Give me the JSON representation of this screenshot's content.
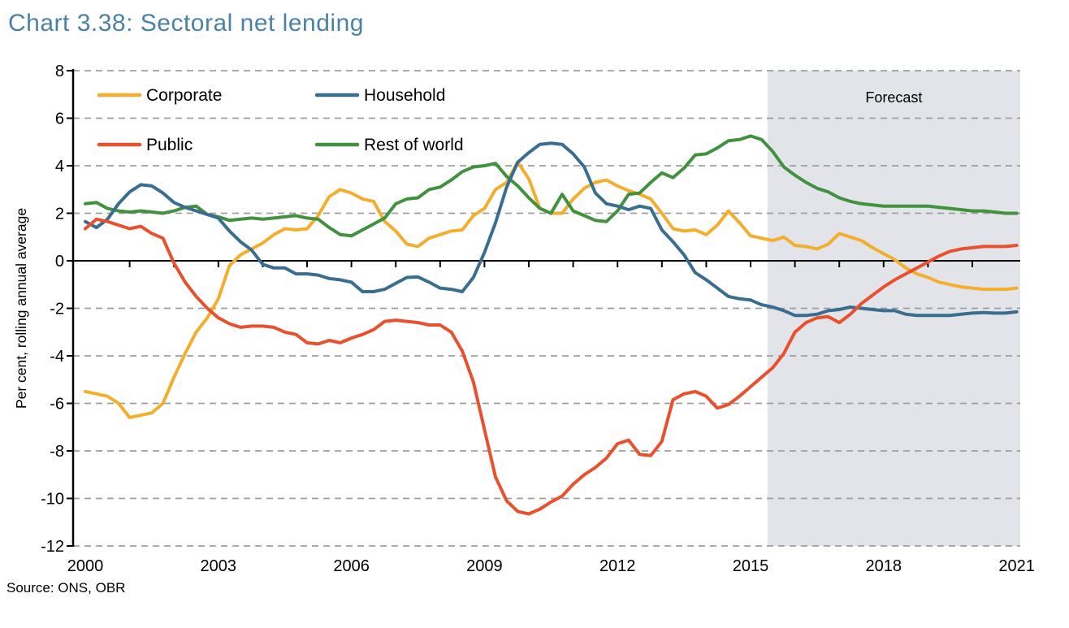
{
  "title": "Chart 3.38: Sectoral net lending",
  "source_note": "Source: ONS, OBR",
  "colors": {
    "title": "#4B81A5",
    "background": "#FFFFFF",
    "forecast_band": "#E2E4E9",
    "gridline": "#9E9E9E",
    "axis": "#000000",
    "text": "#000000"
  },
  "chart_data": {
    "type": "line",
    "title": "Chart 3.38: Sectoral net lending",
    "xlabel": "",
    "ylabel": "Per cent, rolling annual average",
    "forecast_label": "Forecast",
    "forecast_start": 2015.38,
    "ylim": [
      -12,
      8
    ],
    "xlim": [
      2000,
      2021.2
    ],
    "y_ticks": [
      8,
      6,
      4,
      2,
      0,
      -2,
      -4,
      -6,
      -8,
      -10,
      -12
    ],
    "x_tick_years": [
      2000,
      2003,
      2006,
      2009,
      2012,
      2015,
      2018,
      2021
    ],
    "x_tick_labels": [
      "2000",
      "2003",
      "2006",
      "2009",
      "2012",
      "2015",
      "2018",
      "2021"
    ],
    "x_start": 2000,
    "x_step": 0.25,
    "grid": "dashed-horizontal",
    "legend_position": "top-left-two-columns",
    "legend_order": [
      "Corporate",
      "Household",
      "Public",
      "Rest of world"
    ],
    "series": [
      {
        "name": "Corporate",
        "color": "#F2AE2C",
        "values": [
          -5.5,
          -5.6,
          -5.7,
          -6.0,
          -6.6,
          -6.5,
          -6.4,
          -6.0,
          -4.9,
          -3.9,
          -3.0,
          -2.4,
          -1.6,
          -0.2,
          0.25,
          0.5,
          0.75,
          1.1,
          1.35,
          1.3,
          1.35,
          1.9,
          2.7,
          3.0,
          2.85,
          2.6,
          2.5,
          1.65,
          1.25,
          0.7,
          0.6,
          0.95,
          1.1,
          1.25,
          1.3,
          1.9,
          2.2,
          3.0,
          3.3,
          4.15,
          3.45,
          2.2,
          2.0,
          2.0,
          2.6,
          3.05,
          3.3,
          3.4,
          3.15,
          2.95,
          2.8,
          2.6,
          2.0,
          1.35,
          1.25,
          1.3,
          1.1,
          1.5,
          2.1,
          1.6,
          1.05,
          0.95,
          0.85,
          1.0,
          0.65,
          0.6,
          0.5,
          0.7,
          1.15,
          1.0,
          0.85,
          0.55,
          0.3,
          0.05,
          -0.3,
          -0.55,
          -0.7,
          -0.9,
          -1.0,
          -1.1,
          -1.15,
          -1.2,
          -1.2,
          -1.2,
          -1.15
        ]
      },
      {
        "name": "Household",
        "color": "#3A6E91",
        "values": [
          1.65,
          1.4,
          1.75,
          2.4,
          2.9,
          3.2,
          3.15,
          2.85,
          2.45,
          2.25,
          2.1,
          1.95,
          1.8,
          1.25,
          0.8,
          0.45,
          -0.15,
          -0.3,
          -0.3,
          -0.55,
          -0.55,
          -0.6,
          -0.75,
          -0.8,
          -0.9,
          -1.3,
          -1.3,
          -1.2,
          -0.95,
          -0.7,
          -0.68,
          -0.9,
          -1.15,
          -1.2,
          -1.3,
          -0.7,
          0.35,
          1.6,
          3.1,
          4.15,
          4.55,
          4.9,
          4.95,
          4.9,
          4.5,
          3.95,
          2.85,
          2.4,
          2.3,
          2.15,
          2.3,
          2.2,
          1.3,
          0.8,
          0.25,
          -0.5,
          -0.8,
          -1.15,
          -1.5,
          -1.6,
          -1.65,
          -1.85,
          -1.95,
          -2.1,
          -2.3,
          -2.3,
          -2.25,
          -2.1,
          -2.05,
          -1.95,
          -2.0,
          -2.05,
          -2.1,
          -2.1,
          -2.25,
          -2.3,
          -2.3,
          -2.3,
          -2.3,
          -2.25,
          -2.2,
          -2.18,
          -2.2,
          -2.2,
          -2.15
        ]
      },
      {
        "name": "Public",
        "color": "#E9502E",
        "values": [
          1.35,
          1.75,
          1.65,
          1.5,
          1.35,
          1.45,
          1.15,
          0.95,
          -0.1,
          -0.9,
          -1.5,
          -2.0,
          -2.4,
          -2.65,
          -2.8,
          -2.75,
          -2.75,
          -2.8,
          -3.0,
          -3.1,
          -3.45,
          -3.5,
          -3.35,
          -3.45,
          -3.25,
          -3.1,
          -2.9,
          -2.55,
          -2.5,
          -2.55,
          -2.6,
          -2.7,
          -2.7,
          -3.0,
          -3.8,
          -5.1,
          -7.1,
          -9.1,
          -10.1,
          -10.55,
          -10.65,
          -10.45,
          -10.15,
          -9.9,
          -9.4,
          -9.0,
          -8.7,
          -8.3,
          -7.7,
          -7.55,
          -8.15,
          -8.2,
          -7.6,
          -5.85,
          -5.6,
          -5.5,
          -5.7,
          -6.2,
          -6.05,
          -5.7,
          -5.3,
          -4.9,
          -4.5,
          -3.9,
          -3.0,
          -2.6,
          -2.4,
          -2.35,
          -2.6,
          -2.25,
          -1.8,
          -1.45,
          -1.1,
          -0.8,
          -0.55,
          -0.3,
          -0.05,
          0.2,
          0.4,
          0.5,
          0.55,
          0.6,
          0.6,
          0.6,
          0.65
        ]
      },
      {
        "name": "Rest of world",
        "color": "#41913F",
        "values": [
          2.4,
          2.45,
          2.2,
          2.1,
          2.05,
          2.1,
          2.05,
          2.0,
          2.1,
          2.25,
          2.3,
          1.95,
          1.85,
          1.7,
          1.75,
          1.8,
          1.75,
          1.8,
          1.85,
          1.9,
          1.8,
          1.75,
          1.4,
          1.1,
          1.05,
          1.3,
          1.55,
          1.8,
          2.4,
          2.6,
          2.65,
          3.0,
          3.1,
          3.4,
          3.75,
          3.95,
          4.0,
          4.1,
          3.55,
          3.15,
          2.65,
          2.2,
          2.0,
          2.8,
          2.1,
          1.9,
          1.7,
          1.65,
          2.1,
          2.8,
          2.85,
          3.3,
          3.7,
          3.5,
          3.9,
          4.45,
          4.5,
          4.75,
          5.05,
          5.1,
          5.25,
          5.1,
          4.6,
          3.95,
          3.6,
          3.3,
          3.05,
          2.9,
          2.65,
          2.5,
          2.4,
          2.35,
          2.3,
          2.3,
          2.3,
          2.3,
          2.3,
          2.25,
          2.2,
          2.15,
          2.1,
          2.1,
          2.05,
          2.0,
          2.0
        ]
      }
    ]
  }
}
